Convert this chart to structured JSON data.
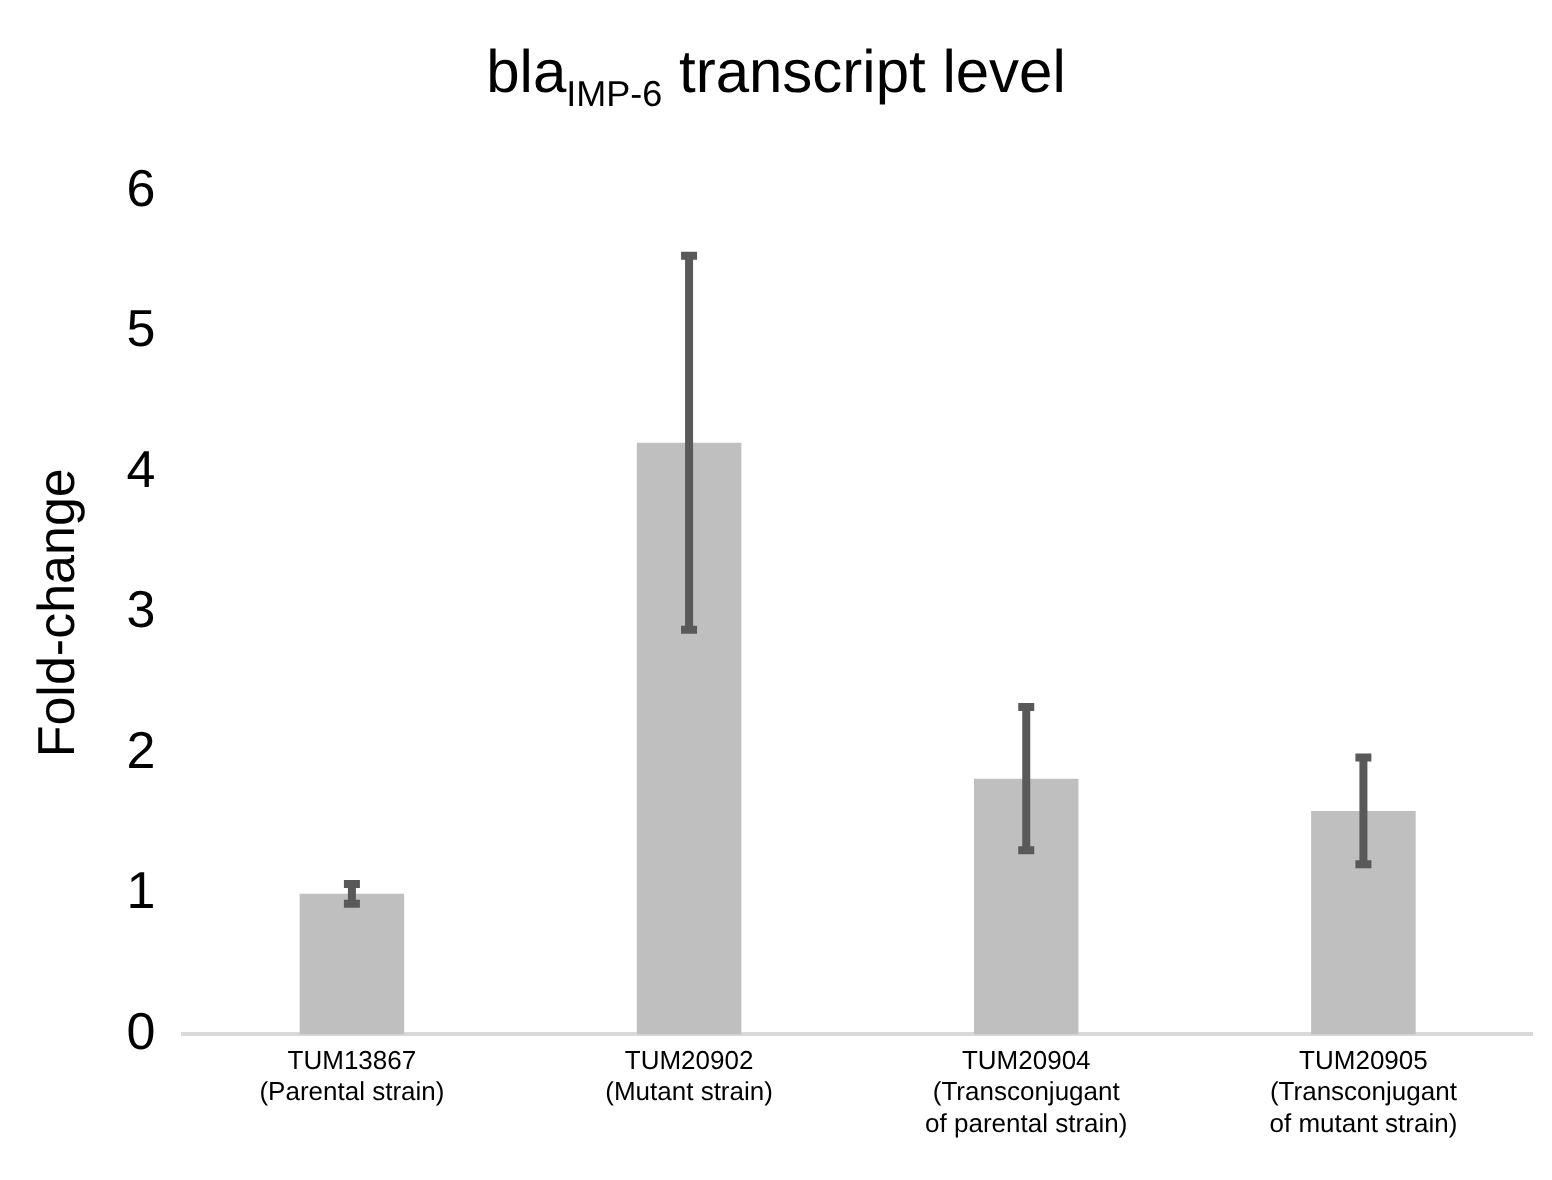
{
  "chart_data": {
    "type": "bar",
    "title": "bla$_{IMP-6}$ transcript level",
    "ylabel": "Fold-change",
    "categories": [
      "TUM13867\n(Parental strain)",
      "TUM20902\n(Mutant strain)",
      "TUM20904\n(Transconjugant\nof parental strain)",
      "TUM20905\n(Transconjugant\nof mutant strain)"
    ],
    "values": [
      1.0,
      4.21,
      1.82,
      1.59
    ],
    "errors": [
      0.07,
      1.33,
      0.51,
      0.38
    ],
    "color": "#bfbfbf",
    "ylim": [
      0,
      6
    ],
    "yticks": [
      0,
      1,
      2,
      3,
      4,
      5,
      6
    ],
    "grid": false
  }
}
